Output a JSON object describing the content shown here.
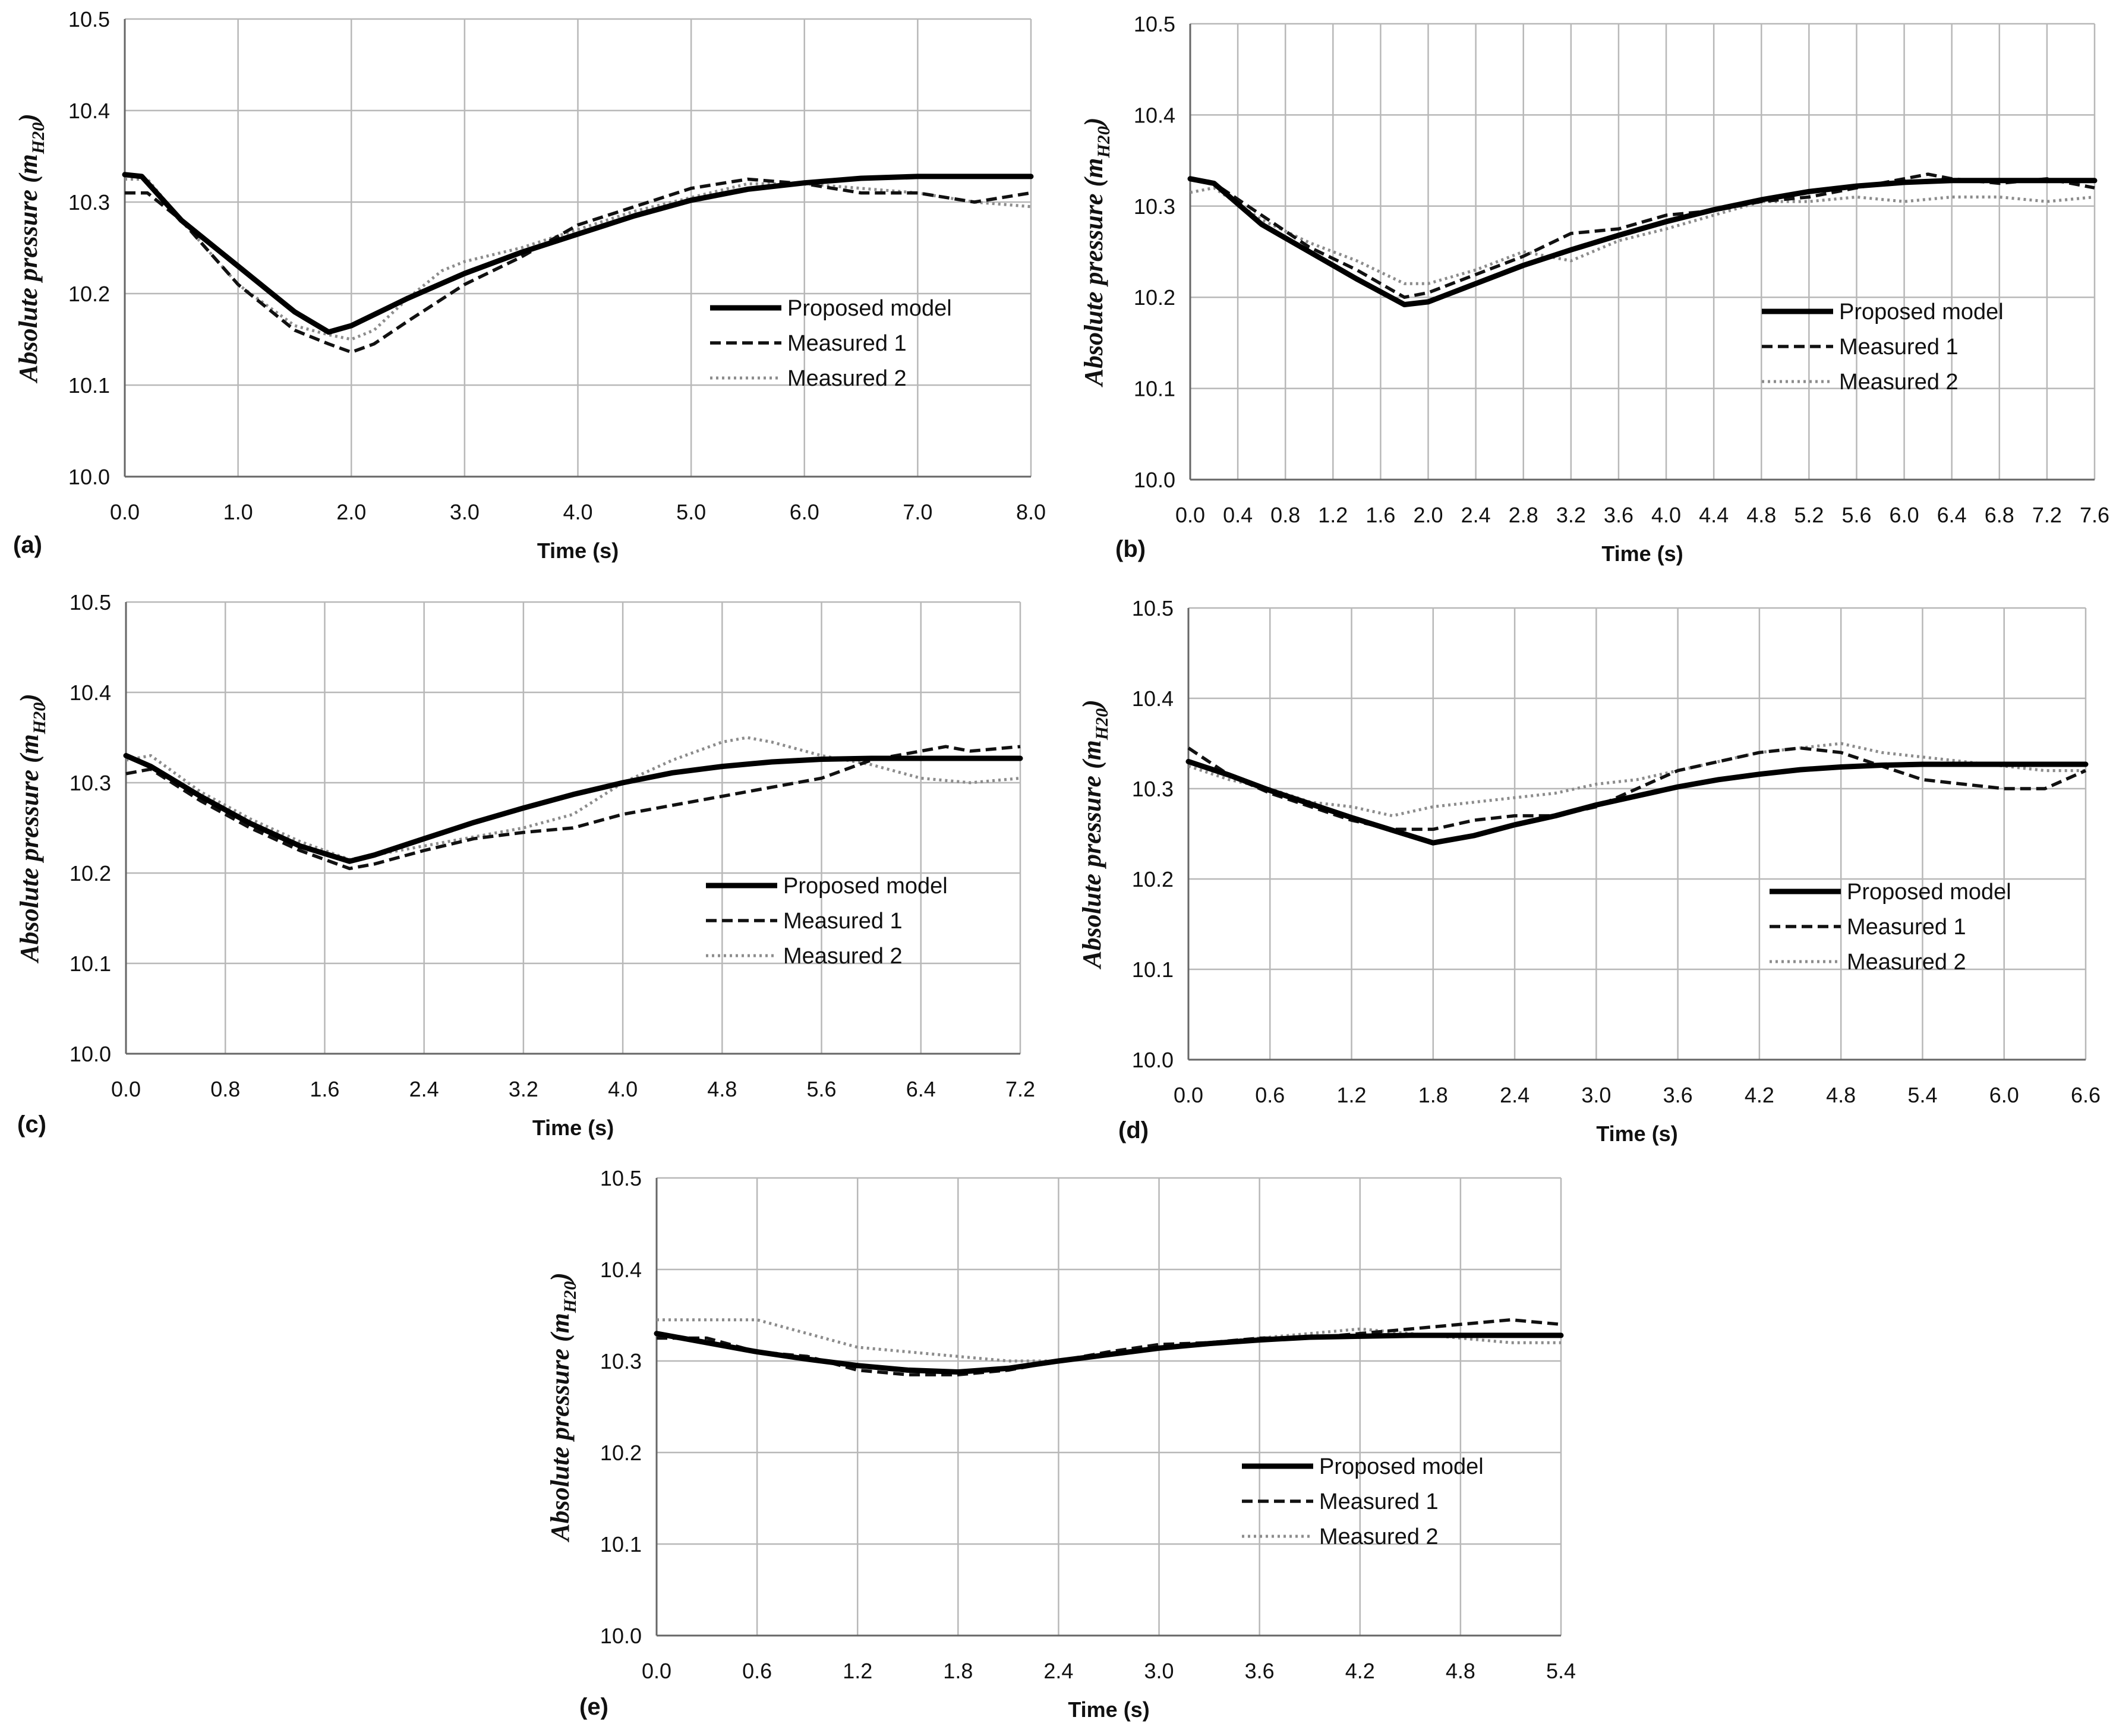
{
  "colors": {
    "model": "#000000",
    "measured1": "#111111",
    "measured2": "#8c8c8c",
    "grid": "#b8b8b8",
    "axis": "#666666",
    "text": "#111111"
  },
  "y_axis_label": {
    "prefix": "Absolute pressure ",
    "unit_open": "(m",
    "unit_sub": "H20",
    "unit_close": ")"
  },
  "chart_data": [
    {
      "panel": "(a)",
      "type": "line",
      "xlabel": "Time (s)",
      "xlim": [
        0,
        8
      ],
      "ylim": [
        10.0,
        10.5
      ],
      "xticks": [
        "0.0",
        "1.0",
        "2.0",
        "3.0",
        "4.0",
        "5.0",
        "6.0",
        "7.0",
        "8.0"
      ],
      "yticks": [
        "10.0",
        "10.1",
        "10.2",
        "10.3",
        "10.4",
        "10.5"
      ],
      "legend": [
        "Proposed model",
        "Measured 1",
        "Measured 2"
      ],
      "series": [
        {
          "name": "Proposed model",
          "x": [
            0,
            0.15,
            0.5,
            1.0,
            1.5,
            1.8,
            2.0,
            2.5,
            3.0,
            3.5,
            4.0,
            4.5,
            5.0,
            5.5,
            6.0,
            6.5,
            7.0,
            7.5,
            8.0
          ],
          "y": [
            10.33,
            10.328,
            10.28,
            10.23,
            10.18,
            10.158,
            10.165,
            10.195,
            10.222,
            10.245,
            10.265,
            10.285,
            10.302,
            10.314,
            10.321,
            10.326,
            10.328,
            10.328,
            10.328
          ]
        },
        {
          "name": "Measured 1",
          "x": [
            0,
            0.2,
            0.5,
            1.0,
            1.5,
            1.8,
            2.0,
            2.2,
            2.5,
            3.0,
            3.5,
            4.0,
            4.5,
            5.0,
            5.5,
            6.0,
            6.5,
            7.0,
            7.5,
            8.0
          ],
          "y": [
            10.31,
            10.31,
            10.28,
            10.21,
            10.16,
            10.145,
            10.136,
            10.145,
            10.17,
            10.21,
            10.24,
            10.275,
            10.295,
            10.315,
            10.325,
            10.32,
            10.31,
            10.31,
            10.3,
            10.31
          ]
        },
        {
          "name": "Measured 2",
          "x": [
            0,
            0.2,
            0.5,
            1.0,
            1.5,
            1.8,
            2.0,
            2.2,
            2.5,
            2.8,
            3.0,
            3.5,
            4.0,
            4.5,
            5.0,
            5.5,
            6.0,
            6.5,
            7.0,
            7.5,
            8.0
          ],
          "y": [
            10.325,
            10.325,
            10.28,
            10.21,
            10.165,
            10.155,
            10.15,
            10.16,
            10.195,
            10.225,
            10.235,
            10.25,
            10.27,
            10.29,
            10.305,
            10.32,
            10.32,
            10.315,
            10.31,
            10.3,
            10.295
          ]
        }
      ]
    },
    {
      "panel": "(b)",
      "type": "line",
      "xlabel": "Time (s)",
      "xlim": [
        0,
        7.6
      ],
      "ylim": [
        10.0,
        10.5
      ],
      "xticks": [
        "0.0",
        "0.4",
        "0.8",
        "1.2",
        "1.6",
        "2.0",
        "2.4",
        "2.8",
        "3.2",
        "3.6",
        "4.0",
        "4.4",
        "4.8",
        "5.2",
        "5.6",
        "6.0",
        "6.4",
        "6.8",
        "7.2",
        "7.6"
      ],
      "yticks": [
        "10.0",
        "10.1",
        "10.2",
        "10.3",
        "10.4",
        "10.5"
      ],
      "legend": [
        "Proposed model",
        "Measured 1",
        "Measured 2"
      ],
      "series": [
        {
          "name": "Proposed model",
          "x": [
            0,
            0.2,
            0.6,
            1.0,
            1.4,
            1.8,
            2.0,
            2.4,
            2.8,
            3.2,
            3.6,
            4.0,
            4.4,
            4.8,
            5.2,
            5.6,
            6.0,
            6.4,
            6.8,
            7.2,
            7.6
          ],
          "y": [
            10.33,
            10.325,
            10.28,
            10.25,
            10.22,
            10.192,
            10.195,
            10.215,
            10.235,
            10.252,
            10.268,
            10.283,
            10.296,
            10.307,
            10.316,
            10.322,
            10.326,
            10.328,
            10.328,
            10.328,
            10.328
          ]
        },
        {
          "name": "Measured 1",
          "x": [
            0,
            0.2,
            0.6,
            1.0,
            1.4,
            1.8,
            2.0,
            2.4,
            2.8,
            3.2,
            3.6,
            4.0,
            4.4,
            4.8,
            5.2,
            5.6,
            6.0,
            6.2,
            6.4,
            6.8,
            7.2,
            7.6
          ],
          "y": [
            10.33,
            10.325,
            10.29,
            10.255,
            10.23,
            10.2,
            10.205,
            10.225,
            10.245,
            10.27,
            10.275,
            10.29,
            10.295,
            10.305,
            10.31,
            10.32,
            10.33,
            10.335,
            10.33,
            10.325,
            10.33,
            10.32
          ]
        },
        {
          "name": "Measured 2",
          "x": [
            0,
            0.2,
            0.6,
            1.0,
            1.4,
            1.8,
            2.0,
            2.4,
            2.8,
            3.2,
            3.6,
            4.0,
            4.4,
            4.8,
            5.2,
            5.6,
            6.0,
            6.4,
            6.8,
            7.2,
            7.6
          ],
          "y": [
            10.315,
            10.32,
            10.285,
            10.26,
            10.24,
            10.215,
            10.215,
            10.23,
            10.25,
            10.24,
            10.262,
            10.275,
            10.29,
            10.305,
            10.305,
            10.31,
            10.305,
            10.31,
            10.31,
            10.305,
            10.31
          ]
        }
      ]
    },
    {
      "panel": "(c)",
      "type": "line",
      "xlabel": "Time (s)",
      "xlim": [
        0,
        7.2
      ],
      "ylim": [
        10.0,
        10.5
      ],
      "xticks": [
        "0.0",
        "0.8",
        "1.6",
        "2.4",
        "3.2",
        "4.0",
        "4.8",
        "5.6",
        "6.4",
        "7.2"
      ],
      "yticks": [
        "10.0",
        "10.1",
        "10.2",
        "10.3",
        "10.4",
        "10.5"
      ],
      "legend": [
        "Proposed model",
        "Measured 1",
        "Measured 2"
      ],
      "series": [
        {
          "name": "Proposed model",
          "x": [
            0,
            0.2,
            0.6,
            1.0,
            1.4,
            1.8,
            2.0,
            2.4,
            2.8,
            3.2,
            3.6,
            4.0,
            4.4,
            4.8,
            5.2,
            5.6,
            6.0,
            6.4,
            6.8,
            7.2
          ],
          "y": [
            10.33,
            10.318,
            10.285,
            10.255,
            10.23,
            10.213,
            10.22,
            10.238,
            10.256,
            10.272,
            10.287,
            10.3,
            10.311,
            10.318,
            10.323,
            10.326,
            10.327,
            10.327,
            10.327,
            10.327
          ]
        },
        {
          "name": "Measured 1",
          "x": [
            0,
            0.2,
            0.6,
            1.0,
            1.4,
            1.8,
            2.0,
            2.4,
            2.8,
            3.2,
            3.6,
            4.0,
            4.4,
            4.8,
            5.2,
            5.6,
            6.0,
            6.4,
            6.6,
            6.8,
            7.2
          ],
          "y": [
            10.31,
            10.315,
            10.28,
            10.25,
            10.225,
            10.205,
            10.21,
            10.225,
            10.238,
            10.245,
            10.25,
            10.265,
            10.275,
            10.285,
            10.295,
            10.305,
            10.325,
            10.335,
            10.34,
            10.335,
            10.34
          ]
        },
        {
          "name": "Measured 2",
          "x": [
            0,
            0.2,
            0.6,
            1.0,
            1.4,
            1.8,
            2.0,
            2.4,
            2.8,
            3.2,
            3.6,
            4.0,
            4.4,
            4.8,
            5.0,
            5.2,
            5.6,
            6.0,
            6.4,
            6.8,
            7.2
          ],
          "y": [
            10.325,
            10.33,
            10.29,
            10.26,
            10.235,
            10.215,
            10.22,
            10.23,
            10.24,
            10.25,
            10.265,
            10.3,
            10.325,
            10.345,
            10.35,
            10.345,
            10.33,
            10.32,
            10.305,
            10.3,
            10.305
          ]
        }
      ]
    },
    {
      "panel": "(d)",
      "type": "line",
      "xlabel": "Time (s)",
      "xlim": [
        0,
        6.6
      ],
      "ylim": [
        10.0,
        10.5
      ],
      "xticks": [
        "0.0",
        "0.6",
        "1.2",
        "1.8",
        "2.4",
        "3.0",
        "3.6",
        "4.2",
        "4.8",
        "5.4",
        "6.0",
        "6.6"
      ],
      "yticks": [
        "10.0",
        "10.1",
        "10.2",
        "10.3",
        "10.4",
        "10.5"
      ],
      "legend": [
        "Proposed model",
        "Measured 1",
        "Measured 2"
      ],
      "series": [
        {
          "name": "Proposed model",
          "x": [
            0,
            0.3,
            0.6,
            0.9,
            1.2,
            1.5,
            1.8,
            2.1,
            2.4,
            2.7,
            3.0,
            3.3,
            3.6,
            3.9,
            4.2,
            4.5,
            4.8,
            5.1,
            5.4,
            5.7,
            6.0,
            6.3,
            6.6
          ],
          "y": [
            10.33,
            10.315,
            10.298,
            10.283,
            10.268,
            10.254,
            10.24,
            10.248,
            10.26,
            10.27,
            10.282,
            10.292,
            10.302,
            10.31,
            10.316,
            10.321,
            10.324,
            10.326,
            10.327,
            10.327,
            10.327,
            10.327,
            10.327
          ]
        },
        {
          "name": "Measured 1",
          "x": [
            0,
            0.3,
            0.6,
            0.9,
            1.2,
            1.5,
            1.8,
            2.1,
            2.4,
            2.7,
            3.0,
            3.3,
            3.6,
            3.9,
            4.2,
            4.5,
            4.8,
            5.1,
            5.4,
            5.7,
            6.0,
            6.3,
            6.6
          ],
          "y": [
            10.345,
            10.315,
            10.295,
            10.28,
            10.265,
            10.255,
            10.255,
            10.265,
            10.27,
            10.27,
            10.28,
            10.3,
            10.32,
            10.33,
            10.34,
            10.345,
            10.34,
            10.325,
            10.31,
            10.305,
            10.3,
            10.3,
            10.32
          ]
        },
        {
          "name": "Measured 2",
          "x": [
            0,
            0.3,
            0.6,
            0.9,
            1.2,
            1.5,
            1.8,
            2.1,
            2.4,
            2.7,
            3.0,
            3.3,
            3.6,
            3.9,
            4.2,
            4.5,
            4.8,
            5.1,
            5.4,
            5.7,
            6.0,
            6.3,
            6.6
          ],
          "y": [
            10.325,
            10.31,
            10.3,
            10.285,
            10.28,
            10.27,
            10.28,
            10.285,
            10.29,
            10.295,
            10.305,
            10.31,
            10.32,
            10.33,
            10.34,
            10.345,
            10.35,
            10.34,
            10.335,
            10.33,
            10.325,
            10.32,
            10.32
          ]
        }
      ]
    },
    {
      "panel": "(e)",
      "type": "line",
      "xlabel": "Time (s)",
      "xlim": [
        0,
        5.4
      ],
      "ylim": [
        10.0,
        10.5
      ],
      "xticks": [
        "0.0",
        "0.6",
        "1.2",
        "1.8",
        "2.4",
        "3.0",
        "3.6",
        "4.2",
        "4.8",
        "5.4"
      ],
      "yticks": [
        "10.0",
        "10.1",
        "10.2",
        "10.3",
        "10.4",
        "10.5"
      ],
      "legend": [
        "Proposed model",
        "Measured 1",
        "Measured 2"
      ],
      "series": [
        {
          "name": "Proposed model",
          "x": [
            0,
            0.3,
            0.6,
            0.9,
            1.2,
            1.5,
            1.8,
            2.1,
            2.4,
            2.7,
            3.0,
            3.3,
            3.6,
            3.9,
            4.2,
            4.5,
            4.8,
            5.1,
            5.4
          ],
          "y": [
            10.33,
            10.32,
            10.31,
            10.302,
            10.295,
            10.29,
            10.288,
            10.292,
            10.3,
            10.307,
            10.314,
            10.319,
            10.323,
            10.326,
            10.327,
            10.328,
            10.328,
            10.328,
            10.328
          ]
        },
        {
          "name": "Measured 1",
          "x": [
            0,
            0.3,
            0.6,
            0.9,
            1.2,
            1.5,
            1.8,
            2.1,
            2.4,
            2.7,
            3.0,
            3.3,
            3.6,
            3.9,
            4.2,
            4.5,
            4.8,
            5.1,
            5.4
          ],
          "y": [
            10.325,
            10.325,
            10.31,
            10.305,
            10.29,
            10.285,
            10.285,
            10.29,
            10.3,
            10.31,
            10.318,
            10.32,
            10.325,
            10.325,
            10.33,
            10.335,
            10.34,
            10.345,
            10.34
          ]
        },
        {
          "name": "Measured 2",
          "x": [
            0,
            0.3,
            0.6,
            0.9,
            1.2,
            1.5,
            1.8,
            2.1,
            2.4,
            2.7,
            3.0,
            3.3,
            3.6,
            3.9,
            4.2,
            4.5,
            4.8,
            5.1,
            5.4
          ],
          "y": [
            10.345,
            10.345,
            10.345,
            10.33,
            10.315,
            10.31,
            10.305,
            10.3,
            10.3,
            10.308,
            10.315,
            10.32,
            10.325,
            10.33,
            10.335,
            10.33,
            10.325,
            10.32,
            10.32
          ]
        }
      ]
    }
  ]
}
